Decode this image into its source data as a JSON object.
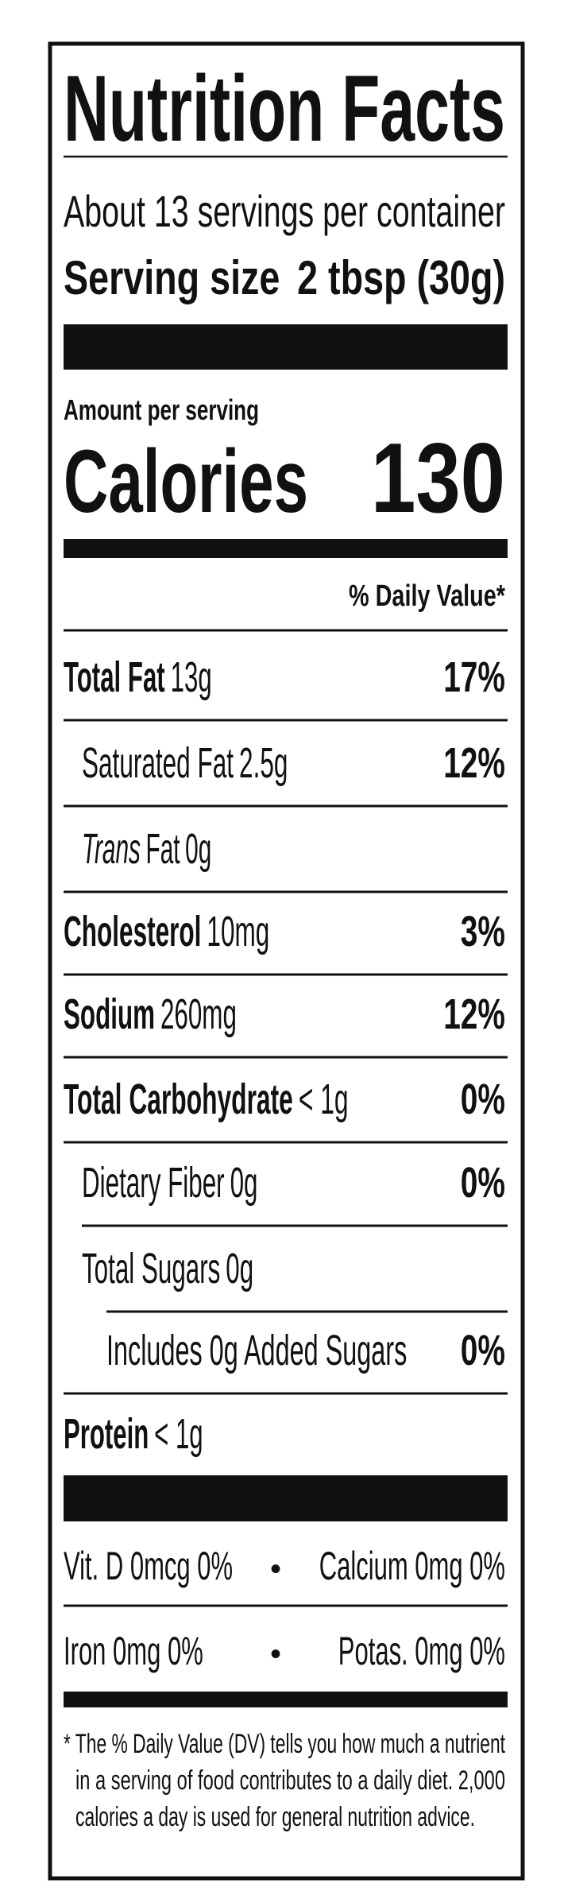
{
  "header": {
    "title": "Nutrition Facts",
    "servings": "About 13 servings per container",
    "serving_size_label": "Serving size",
    "serving_size_value": "2 tbsp (30g)"
  },
  "calories": {
    "amount_label": "Amount per serving",
    "label": "Calories",
    "value": "130"
  },
  "daily_value_header": "% Daily Value*",
  "nutrients": [
    {
      "name": "Total Fat",
      "amount": "13g",
      "dv": "17%",
      "bold": true,
      "level": 0
    },
    {
      "name": "Saturated Fat",
      "amount": "2.5g",
      "dv": "12%",
      "bold": false,
      "level": 1
    },
    {
      "name_prefix": "Trans",
      "name": "Fat",
      "amount": "0g",
      "bold": false,
      "level": 1
    },
    {
      "name": "Cholesterol",
      "amount": "10mg",
      "dv": "3%",
      "bold": true,
      "level": 0
    },
    {
      "name": "Sodium",
      "amount": "260mg",
      "dv": "12%",
      "bold": true,
      "level": 0
    },
    {
      "name": "Total Carbohydrate",
      "amount": "< 1g",
      "dv": "0%",
      "bold": true,
      "level": 0
    },
    {
      "name": "Dietary Fiber",
      "amount": "0g",
      "dv": "0%",
      "bold": false,
      "level": 1
    },
    {
      "name": "Total Sugars",
      "amount": "0g",
      "bold": false,
      "level": 1
    },
    {
      "name": "Includes 0g Added Sugars",
      "dv": "0%",
      "bold": false,
      "level": 2
    },
    {
      "name": "Protein",
      "amount": "< 1g",
      "bold": true,
      "level": 0
    }
  ],
  "vitamins": [
    [
      "Vit. D 0mcg 0%",
      "Calcium 0mg 0%"
    ],
    [
      "Iron 0mg 0%",
      "Potas. 0mg 0%"
    ]
  ],
  "separator": "•",
  "footnote": [
    "* The % Daily Value (DV) tells you how much a nutrient",
    "in a serving of food contributes to a daily diet. 2,000",
    "calories a day is used for general nutrition advice."
  ]
}
